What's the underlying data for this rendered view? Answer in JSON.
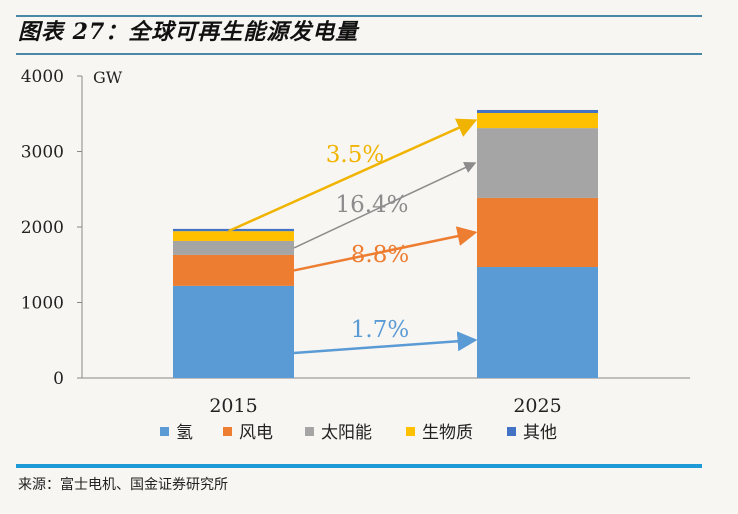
{
  "title": "图表 27：全球可再生能源发电量",
  "source": "来源：富士电机、国金证券研究所",
  "chart_data": {
    "type": "bar",
    "stacked": true,
    "title": "图表 27：全球可再生能源发电量",
    "ylabel": "GW",
    "ylim": [
      0,
      4000
    ],
    "yticks": [
      0,
      1000,
      2000,
      3000,
      4000
    ],
    "categories": [
      "2015",
      "2025"
    ],
    "series": [
      {
        "name": "氢",
        "color": "#5b9bd5",
        "values": [
          1220,
          1470
        ]
      },
      {
        "name": "风电",
        "color": "#ed7d31",
        "values": [
          410,
          915
        ]
      },
      {
        "name": "太阳能",
        "color": "#a5a5a5",
        "values": [
          185,
          925
        ]
      },
      {
        "name": "生物质",
        "color": "#ffc000",
        "values": [
          130,
          200
        ]
      },
      {
        "name": "其他",
        "color": "#4472c4",
        "values": [
          30,
          40
        ]
      }
    ],
    "annotations": [
      {
        "text": "1.7%",
        "series": "氢",
        "color": "#5b9bd5"
      },
      {
        "text": "8.8%",
        "series": "风电",
        "color": "#ed7d31"
      },
      {
        "text": "16.4%",
        "series": "太阳能",
        "color": "#8c8c8c"
      },
      {
        "text": "3.5%",
        "series": "生物质",
        "color": "#f0b400"
      }
    ],
    "grid": false,
    "legend": "bottom"
  }
}
